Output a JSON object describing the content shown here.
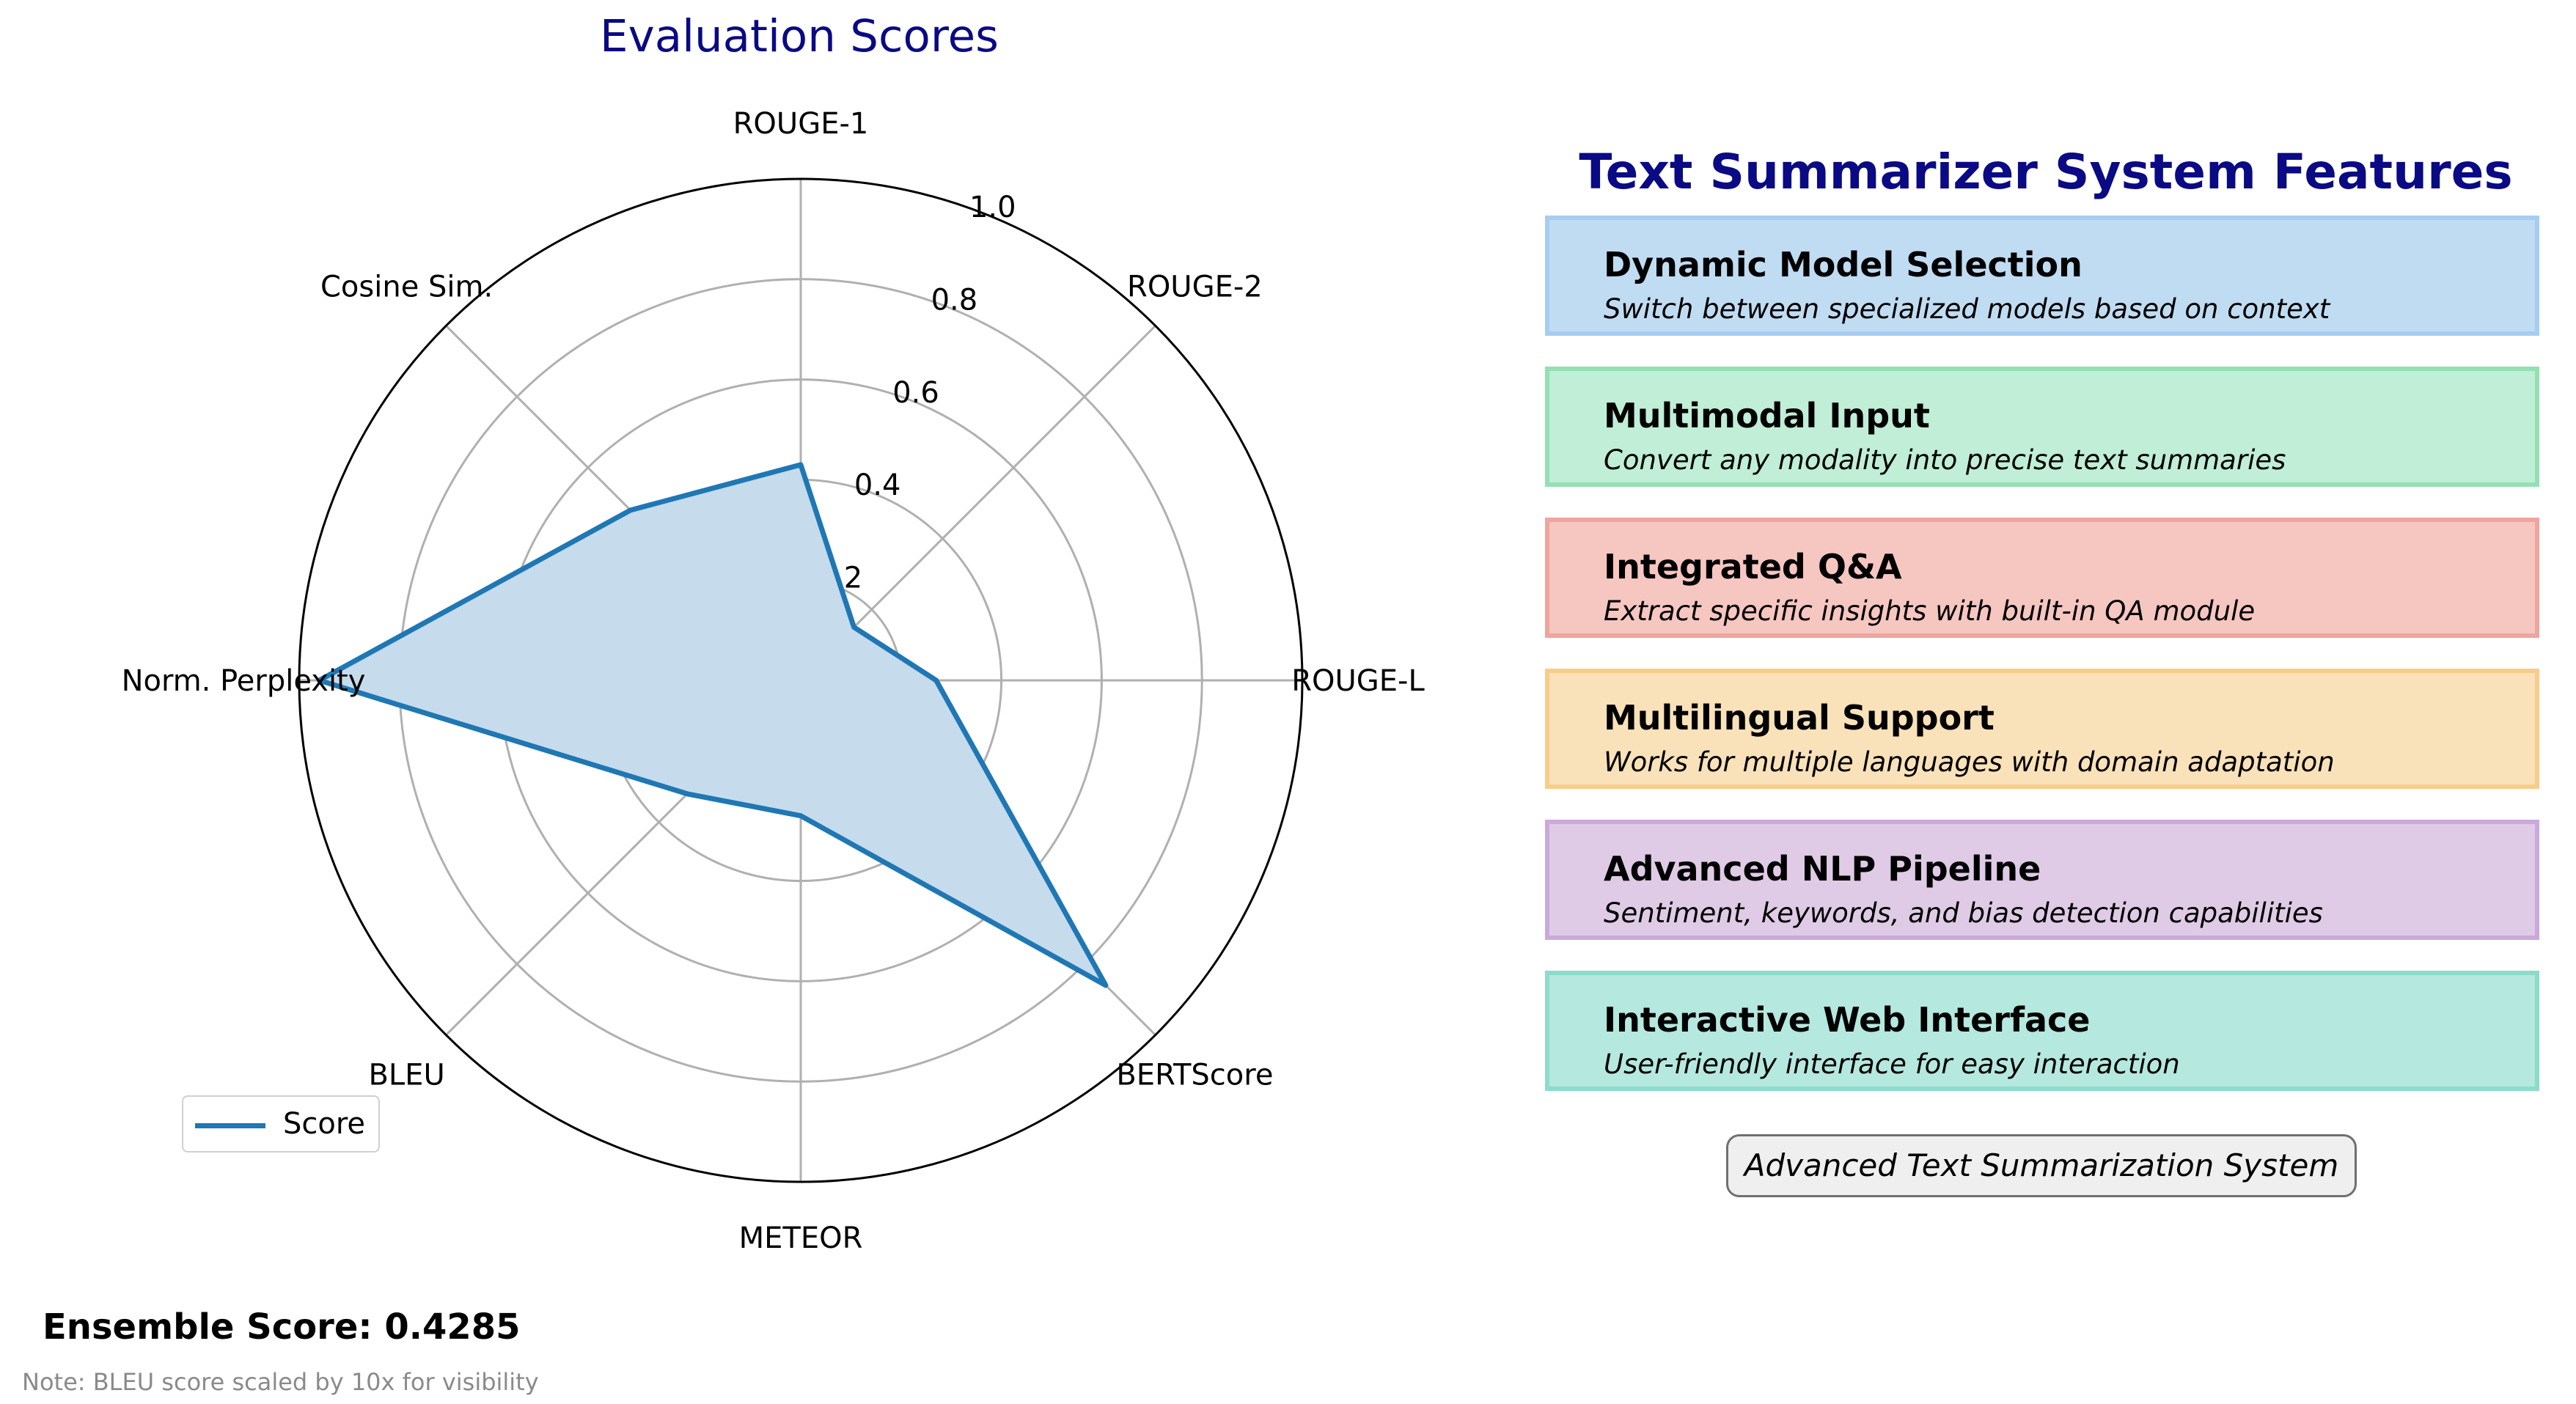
{
  "chart_data": {
    "type": "radar",
    "title": "Evaluation Scores",
    "axes": [
      "ROUGE-1",
      "ROUGE-2",
      "ROUGE-L",
      "BERTScore",
      "METEOR",
      "BLEU",
      "Norm. Perplexity",
      "Cosine Sim."
    ],
    "radial_ticks": [
      0.2,
      0.4,
      0.6,
      0.8,
      1.0
    ],
    "rlim": [
      0,
      1.0
    ],
    "grid": true,
    "legend": "bottom-left",
    "series": [
      {
        "name": "Score",
        "values": [
          0.43,
          0.15,
          0.27,
          0.86,
          0.27,
          0.32,
          0.96,
          0.48
        ]
      }
    ]
  },
  "series_color": "#1f77b4",
  "fill_color": "#c6dbec",
  "ensemble_text": "Ensemble Score: 0.4285",
  "note_text": "Note: BLEU score scaled by 10x for visibility",
  "features_title": "Text Summarizer System Features",
  "features": [
    {
      "title": "Dynamic Model Selection",
      "desc": "Switch between specialized models based on context",
      "bg": "#c0dcf2",
      "border": "#a6cdf0"
    },
    {
      "title": "Multimodal Input",
      "desc": "Convert any modality into precise text summaries",
      "bg": "#c0eed7",
      "border": "#93e0b3"
    },
    {
      "title": "Integrated Q&A",
      "desc": "Extract specific insights with built-in QA module",
      "bg": "#f6c6c1",
      "border": "#efa4a0"
    },
    {
      "title": "Multilingual Support",
      "desc": "Works for multiple languages with domain adaptation",
      "bg": "#f9e1b9",
      "border": "#f8cd8a"
    },
    {
      "title": "Advanced NLP Pipeline",
      "desc": "Sentiment, keywords, and bias detection capabilities",
      "bg": "#e0cbe6",
      "border": "#cba9dc"
    },
    {
      "title": "Interactive Web Interface",
      "desc": "User-friendly interface for easy interaction",
      "bg": "#b5e8df",
      "border": "#8cdcc9"
    }
  ],
  "footer_label": "Advanced Text Summarization System"
}
